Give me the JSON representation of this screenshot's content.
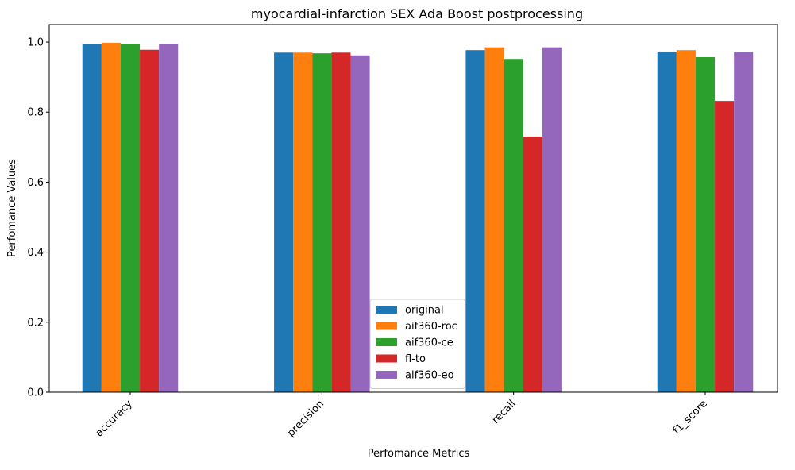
{
  "chart_data": {
    "type": "bar",
    "title": "myocardial-infarction SEX Ada Boost postprocessing",
    "xlabel": "Perfomance Metrics",
    "ylabel": "Perfomance Values",
    "categories": [
      "accuracy",
      "precision",
      "recall",
      "f1_score"
    ],
    "ylim": [
      0,
      1.05
    ],
    "yticks": [
      "0.0",
      "0.2",
      "0.4",
      "0.6",
      "0.8",
      "1.0"
    ],
    "grid": false,
    "legend_position": "bottom-center",
    "series": [
      {
        "name": "original",
        "color": "#1f77b4",
        "values": [
          0.995,
          0.97,
          0.977,
          0.973
        ]
      },
      {
        "name": "aif360-roc",
        "color": "#ff7f0e",
        "values": [
          0.998,
          0.97,
          0.985,
          0.977
        ]
      },
      {
        "name": "aif360-ce",
        "color": "#2ca02c",
        "values": [
          0.995,
          0.968,
          0.952,
          0.957
        ]
      },
      {
        "name": "fl-to",
        "color": "#d62728",
        "values": [
          0.978,
          0.97,
          0.73,
          0.832
        ]
      },
      {
        "name": "aif360-eo",
        "color": "#9467bd",
        "values": [
          0.995,
          0.962,
          0.985,
          0.972
        ]
      }
    ]
  }
}
